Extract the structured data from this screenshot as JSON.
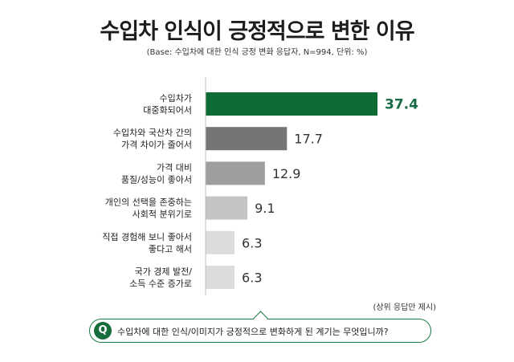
{
  "chart_data": {
    "type": "bar",
    "orientation": "horizontal",
    "title": "수입차 인식이 긍정적으로 변한 이유",
    "subtitle": "(Base: 수입차에 대한 인식 긍정 변화 응답자, N=994, 단위: %)",
    "categories": [
      [
        "수입차가",
        "대중화되어서"
      ],
      [
        "수입차와 국산차 간의",
        "가격 차이가 줄어서"
      ],
      [
        "가격 대비",
        "품질/성능이 좋아서"
      ],
      [
        "개인의 선택을 존중하는",
        "사회적 분위기로"
      ],
      [
        "직접 경험해 보니 좋아서",
        "좋다고 해서"
      ],
      [
        "국가 경제 발전/",
        "소득 수준 증가로"
      ]
    ],
    "values": [
      37.4,
      17.7,
      12.9,
      9.1,
      6.3,
      6.3
    ],
    "value_labels": [
      "37.4",
      "17.7",
      "12.9",
      "9.1",
      "6.3",
      "6.3"
    ],
    "bar_colors": [
      "#0f6b35",
      "#757575",
      "#9e9e9e",
      "#c4c4c4",
      "#dcdcdc",
      "#dcdcdc"
    ],
    "value_label_colors": [
      "#1a6b45",
      "#333333",
      "#333333",
      "#333333",
      "#333333",
      "#333333"
    ],
    "xlim": [
      0,
      40
    ],
    "grid": false
  },
  "note": "(상위 응답만 제시)",
  "question": {
    "badge": "Q",
    "text": "수입차에 대한 인식/이미지가 긍정적으로 변화하게 된 계기는 무엇입니까?"
  }
}
